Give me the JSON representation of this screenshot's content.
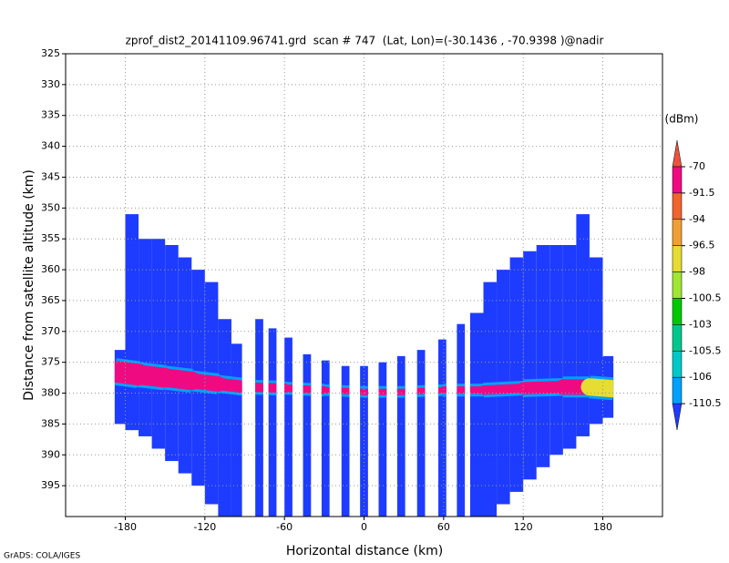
{
  "chart_data": {
    "type": "radar-profile",
    "title": "zprof_dist2_20141109.96741.grd  scan # 747  (Lat, Lon)=(-30.1436 , -70.9398 )@nadir",
    "x_label": "Horizontal distance (km)",
    "y_label": "Distance from satellite altitude (km)",
    "footer": "GrADS: COLA/IGES",
    "xlim": [
      -225,
      225
    ],
    "xticks": [
      -180,
      -120,
      -60,
      0,
      60,
      120,
      180
    ],
    "ylim": [
      400,
      325
    ],
    "yticks": [
      325,
      330,
      335,
      340,
      345,
      350,
      355,
      360,
      365,
      370,
      375,
      380,
      385,
      390,
      395
    ],
    "grid": true,
    "colorbar": {
      "title": "(dBm)",
      "levels": [
        -70,
        -91.5,
        -94,
        -96.5,
        -98,
        -100.5,
        -103,
        -105.5,
        -106,
        -110.5
      ],
      "colors": [
        "#f0503c",
        "#f00a82",
        "#f0642d",
        "#f0a032",
        "#e6dc32",
        "#a0e632",
        "#00c800",
        "#00c88c",
        "#00c8c8",
        "#00a0ff",
        "#1e3cff"
      ]
    },
    "strips": [
      {
        "x0": -188,
        "x1": -180,
        "top": 373,
        "bottom": 385
      },
      {
        "x0": -180,
        "x1": -170,
        "top": 351,
        "bottom": 386
      },
      {
        "x0": -170,
        "x1": -160,
        "top": 355,
        "bottom": 387
      },
      {
        "x0": -160,
        "x1": -150,
        "top": 355,
        "bottom": 389
      },
      {
        "x0": -150,
        "x1": -140,
        "top": 356,
        "bottom": 391
      },
      {
        "x0": -140,
        "x1": -130,
        "top": 358,
        "bottom": 393
      },
      {
        "x0": -130,
        "x1": -120,
        "top": 360,
        "bottom": 395
      },
      {
        "x0": -120,
        "x1": -110,
        "top": 362,
        "bottom": 398
      },
      {
        "x0": -110,
        "x1": -100,
        "top": 368,
        "bottom": 400
      },
      {
        "x0": -100,
        "x1": -92,
        "top": 372,
        "bottom": 400
      },
      {
        "x0": -82,
        "x1": -76,
        "top": 368,
        "bottom": 400
      },
      {
        "x0": -72,
        "x1": -66,
        "top": 369.5,
        "bottom": 400
      },
      {
        "x0": -60,
        "x1": -54,
        "top": 371,
        "bottom": 400
      },
      {
        "x0": -46,
        "x1": -40,
        "top": 373.7,
        "bottom": 400
      },
      {
        "x0": -32,
        "x1": -26,
        "top": 374.7,
        "bottom": 400
      },
      {
        "x0": -17,
        "x1": -11,
        "top": 375.6,
        "bottom": 400
      },
      {
        "x0": -3,
        "x1": 3,
        "top": 375.6,
        "bottom": 400
      },
      {
        "x0": 11,
        "x1": 17,
        "top": 375,
        "bottom": 400
      },
      {
        "x0": 25,
        "x1": 31,
        "top": 374,
        "bottom": 400
      },
      {
        "x0": 40,
        "x1": 46,
        "top": 373,
        "bottom": 400
      },
      {
        "x0": 56,
        "x1": 62,
        "top": 371.3,
        "bottom": 400
      },
      {
        "x0": 70,
        "x1": 76,
        "top": 368.8,
        "bottom": 400
      },
      {
        "x0": 80,
        "x1": 90,
        "top": 367,
        "bottom": 400
      },
      {
        "x0": 90,
        "x1": 100,
        "top": 362,
        "bottom": 400
      },
      {
        "x0": 100,
        "x1": 110,
        "top": 360,
        "bottom": 398
      },
      {
        "x0": 110,
        "x1": 120,
        "top": 358,
        "bottom": 396
      },
      {
        "x0": 120,
        "x1": 130,
        "top": 357,
        "bottom": 394
      },
      {
        "x0": 130,
        "x1": 140,
        "top": 356,
        "bottom": 392
      },
      {
        "x0": 140,
        "x1": 150,
        "top": 356,
        "bottom": 390
      },
      {
        "x0": 150,
        "x1": 160,
        "top": 356,
        "bottom": 389
      },
      {
        "x0": 160,
        "x1": 170,
        "top": 351,
        "bottom": 387
      },
      {
        "x0": 170,
        "x1": 180,
        "top": 358,
        "bottom": 385
      },
      {
        "x0": 180,
        "x1": 188,
        "top": 374,
        "bottom": 384
      }
    ],
    "band": {
      "x": [
        -188,
        -170,
        -150,
        -130,
        -110,
        -90,
        -60,
        -30,
        0,
        30,
        60,
        90,
        120,
        150,
        170,
        188
      ],
      "altitude": [
        376.5,
        377,
        377.5,
        378,
        378.5,
        379,
        379.2,
        379.5,
        379.8,
        379.8,
        379.5,
        379.5,
        379.2,
        379,
        379,
        379.3
      ],
      "width": [
        3.5,
        3.2,
        3,
        2.5,
        2,
        1.5,
        1.2,
        1,
        1,
        1,
        1.2,
        1.5,
        2,
        2.5,
        2.8,
        3
      ],
      "dbm": [
        -85,
        -85,
        -86,
        -88,
        -90,
        -90,
        -90,
        -90,
        -90,
        -90,
        -90,
        -90,
        -88,
        -90,
        -97,
        -98
      ]
    }
  }
}
